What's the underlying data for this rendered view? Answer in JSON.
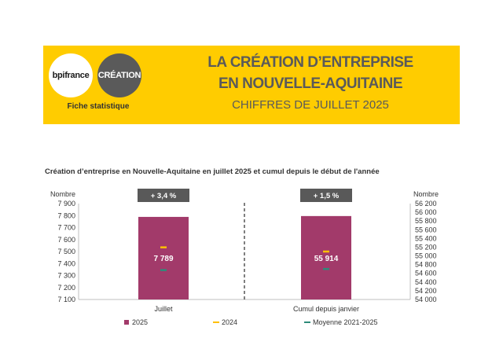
{
  "header": {
    "logo_bpi": "bpifrance",
    "logo_creation": "CRÉATION",
    "fiche": "Fiche statistique",
    "title_line1": "LA CRÉATION D’ENTREPRISE",
    "title_line2": "EN NOUVELLE-AQUITAINE",
    "title_line3": "CHIFFRES DE JUILLET 2025"
  },
  "colors": {
    "banner": "#ffcc00",
    "bar_2025": "#a23a6a",
    "marker_2024": "#ffc000",
    "marker_avg": "#2e8b7a",
    "badge": "#595959"
  },
  "chart_data": {
    "type": "bar",
    "title": "Création d’entreprise en Nouvelle-Aquitaine en juillet 2025 et cumul depuis le début de l'année",
    "left_axis": {
      "label": "Nombre",
      "range": [
        7100,
        7900
      ],
      "ticks": [
        "7 900",
        "7 800",
        "7 700",
        "7 600",
        "7 500",
        "7 400",
        "7 300",
        "7 200",
        "7 100"
      ],
      "tick_values": [
        7900,
        7800,
        7700,
        7600,
        7500,
        7400,
        7300,
        7200,
        7100
      ]
    },
    "right_axis": {
      "label": "Nombre",
      "range": [
        54000,
        56200
      ],
      "ticks": [
        "56 200",
        "56 000",
        "55 800",
        "55 600",
        "55 400",
        "55 200",
        "55 000",
        "54 800",
        "54 600",
        "54 400",
        "54 200",
        "54 000"
      ],
      "tick_values": [
        56200,
        56000,
        55800,
        55600,
        55400,
        55200,
        55000,
        54800,
        54600,
        54400,
        54200,
        54000
      ]
    },
    "categories": [
      {
        "name": "Juillet",
        "axis": "left",
        "value_2025": 7789,
        "value_label": "7 789",
        "value_2024": 7535,
        "value_avg": 7345,
        "badge": "+ 3,4 %"
      },
      {
        "name": "Cumul depuis janvier",
        "axis": "right",
        "value_2025": 55914,
        "value_label": "55 914",
        "value_2024": 55100,
        "value_avg": 54700,
        "badge": "+ 1,5 %"
      }
    ],
    "legend": [
      {
        "name": "2025",
        "kind": "square",
        "color": "#a23a6a"
      },
      {
        "name": "2024",
        "kind": "dash",
        "color": "#ffc000"
      },
      {
        "name": "Moyenne 2021-2025",
        "kind": "dash",
        "color": "#2e8b7a"
      }
    ],
    "legend_position": "bottom",
    "grid": false
  }
}
